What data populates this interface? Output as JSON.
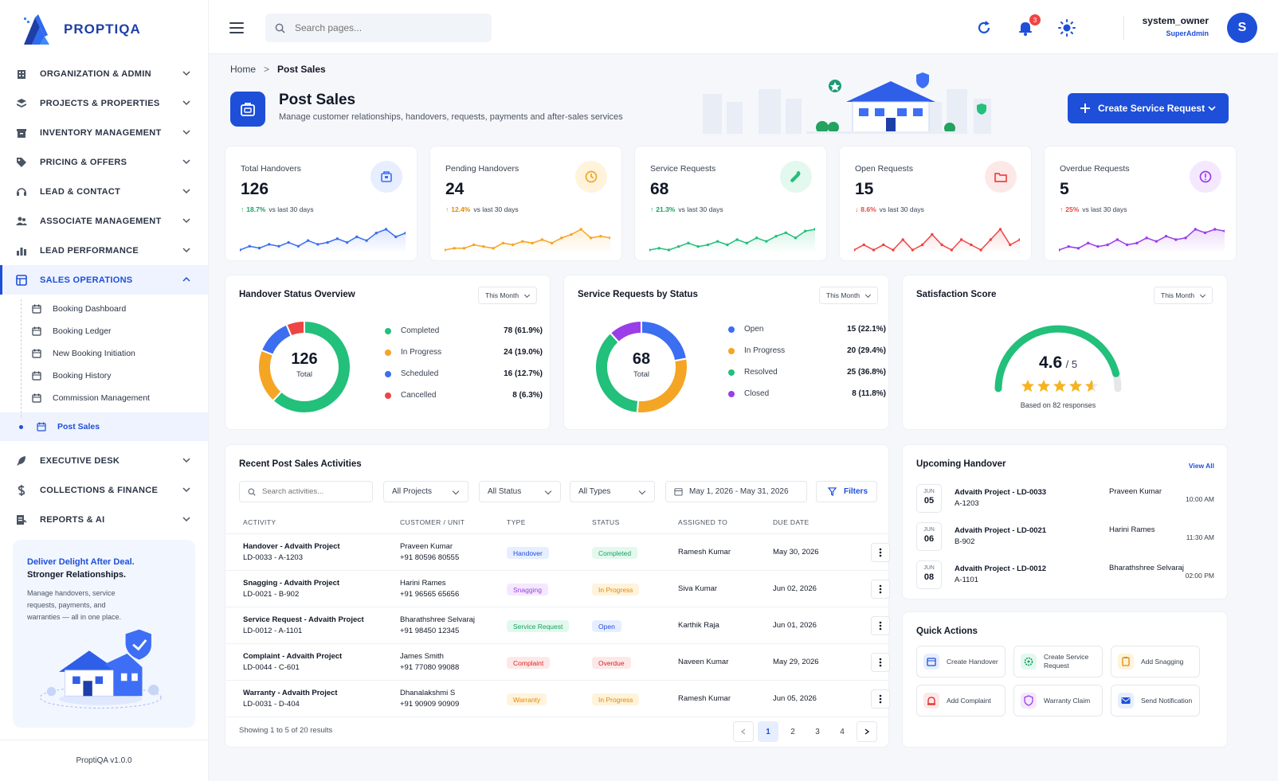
{
  "brand": {
    "name": "PROPTIQA",
    "version": "ProptiQA v1.0.0"
  },
  "colors": {
    "primary": "#1e4fd8",
    "green": "#22c07a",
    "orange": "#f5a524",
    "red": "#ef4444",
    "purple": "#9b3de8",
    "blue": "#3b6ef0"
  },
  "nav": {
    "items": [
      {
        "label": "ORGANIZATION & ADMIN",
        "icon": "building-icon"
      },
      {
        "label": "PROJECTS & PROPERTIES",
        "icon": "layers-icon"
      },
      {
        "label": "INVENTORY MANAGEMENT",
        "icon": "inventory-icon"
      },
      {
        "label": "PRICING & OFFERS",
        "icon": "tag-icon"
      },
      {
        "label": "LEAD & CONTACT",
        "icon": "headset-icon"
      },
      {
        "label": "ASSOCIATE MANAGEMENT",
        "icon": "users-icon"
      },
      {
        "label": "LEAD PERFORMANCE",
        "icon": "bar-chart-icon"
      },
      {
        "label": "SALES OPERATIONS",
        "icon": "grid-icon"
      }
    ],
    "sub": [
      {
        "label": "Booking Dashboard"
      },
      {
        "label": "Booking Ledger"
      },
      {
        "label": "New Booking Initiation"
      },
      {
        "label": "Booking History"
      },
      {
        "label": "Commission Management"
      },
      {
        "label": "Post Sales"
      }
    ],
    "bottom": [
      {
        "label": "EXECUTIVE DESK",
        "icon": "rocket-icon"
      },
      {
        "label": "COLLECTIONS & FINANCE",
        "icon": "dollar-icon"
      },
      {
        "label": "REPORTS & AI",
        "icon": "report-icon"
      }
    ]
  },
  "promo": {
    "line1": "Deliver Delight After Deal.",
    "line2": "Stronger Relationships.",
    "desc": "Manage handovers, service requests, payments, and warranties — all in one place."
  },
  "topbar": {
    "search_placeholder": "Search pages...",
    "notif_count": "3",
    "user_name": "system_owner",
    "user_role": "SuperAdmin",
    "avatar": "S"
  },
  "breadcrumb": {
    "home": "Home",
    "sep": ">",
    "current": "Post Sales"
  },
  "page": {
    "title": "Post Sales",
    "subtitle": "Manage customer relationships, handovers, requests, payments and after-sales services",
    "cta": "Create Service Request"
  },
  "kpis": [
    {
      "label": "Total Handovers",
      "value": "126",
      "change": "18.7%",
      "dir": "up",
      "note": "vs last 30 days",
      "color": "#3b6ef0",
      "spark": [
        3,
        5,
        4,
        6,
        5,
        7,
        5,
        8,
        6,
        7,
        9,
        7,
        10,
        8,
        12,
        14,
        10,
        12
      ]
    },
    {
      "label": "Pending Handovers",
      "value": "24",
      "change": "12.4%",
      "dir": "up",
      "note": "vs last 30 days",
      "color": "#f5a524",
      "spark": [
        2,
        3,
        3,
        5,
        4,
        3,
        6,
        5,
        7,
        6,
        8,
        6,
        9,
        11,
        14,
        9,
        10,
        9
      ]
    },
    {
      "label": "Service Requests",
      "value": "68",
      "change": "21.3%",
      "dir": "up",
      "note": "vs last 30 days",
      "color": "#22c07a",
      "spark": [
        2,
        3,
        2,
        4,
        6,
        4,
        5,
        7,
        5,
        8,
        6,
        9,
        7,
        10,
        12,
        9,
        13,
        14
      ]
    },
    {
      "label": "Open Requests",
      "value": "15",
      "change": "8.6%",
      "dir": "down",
      "note": "vs last 30 days",
      "color": "#ef4444",
      "spark": [
        5,
        6,
        5,
        6,
        5,
        7,
        5,
        6,
        8,
        6,
        5,
        7,
        6,
        5,
        7,
        9,
        6,
        7
      ]
    },
    {
      "label": "Overdue Requests",
      "value": "5",
      "change": "25%",
      "dir": "up",
      "note": "vs last 30 days",
      "color": "#9b3de8",
      "spark": [
        2,
        4,
        3,
        6,
        4,
        5,
        8,
        5,
        6,
        9,
        7,
        10,
        8,
        9,
        14,
        12,
        14,
        13
      ]
    }
  ],
  "handover_status": {
    "title": "Handover Status Overview",
    "filter": "This Month",
    "total": "126",
    "total_label": "Total",
    "segments": [
      {
        "name": "Completed",
        "value": 78,
        "display": "78 (61.9%)",
        "color": "#22c07a"
      },
      {
        "name": "In Progress",
        "value": 24,
        "display": "24 (19.0%)",
        "color": "#f5a524"
      },
      {
        "name": "Scheduled",
        "value": 16,
        "display": "16 (12.7%)",
        "color": "#3b6ef0"
      },
      {
        "name": "Cancelled",
        "value": 8,
        "display": "8 (6.3%)",
        "color": "#ef4444"
      }
    ]
  },
  "service_status": {
    "title": "Service Requests by Status",
    "filter": "This Month",
    "total": "68",
    "total_label": "Total",
    "segments": [
      {
        "name": "Open",
        "value": 15,
        "display": "15 (22.1%)",
        "color": "#3b6ef0"
      },
      {
        "name": "In Progress",
        "value": 20,
        "display": "20 (29.4%)",
        "color": "#f5a524"
      },
      {
        "name": "Resolved",
        "value": 25,
        "display": "25 (36.8%)",
        "color": "#22c07a"
      },
      {
        "name": "Closed",
        "value": 8,
        "display": "8 (11.8%)",
        "color": "#9b3de8"
      }
    ]
  },
  "satisfaction": {
    "title": "Satisfaction Score",
    "filter": "This Month",
    "score": "4.6",
    "max": "/ 5",
    "stars": 4.6,
    "fraction": 0.92,
    "note": "Based on 82 responses"
  },
  "activities": {
    "title": "Recent Post Sales Activities",
    "search_placeholder": "Search activities...",
    "f_projects": "All Projects",
    "f_status": "All Status",
    "f_types": "All Types",
    "f_date": "May 1, 2026 - May 31, 2026",
    "filters_btn": "Filters",
    "columns": [
      "ACTIVITY",
      "CUSTOMER / UNIT",
      "TYPE",
      "STATUS",
      "ASSIGNED TO",
      "DUE DATE"
    ],
    "rows": [
      {
        "title": "Handover - Advaith Project",
        "unit": "LD-0033 - A-1203",
        "customer": "Praveen Kumar",
        "phone": "+91 80596 80555",
        "type": "Handover",
        "type_bg": "#e6eeff",
        "type_fg": "#1e4fd8",
        "status": "Completed",
        "status_bg": "#e3f8ee",
        "status_fg": "#16a35f",
        "assigned": "Ramesh Kumar",
        "due": "May 30, 2026"
      },
      {
        "title": "Snagging - Advaith Project",
        "unit": "LD-0021 - B-902",
        "customer": "Harini Rames",
        "phone": "+91 96565 65656",
        "type": "Snagging",
        "type_bg": "#f4e8ff",
        "type_fg": "#9b3de8",
        "status": "In Progress",
        "status_bg": "#fff3dc",
        "status_fg": "#e08a00",
        "assigned": "Siva Kumar",
        "due": "Jun 02, 2026"
      },
      {
        "title": "Service Request - Advaith Project",
        "unit": "LD-0012 - A-1101",
        "customer": "Bharathshree Selvaraj",
        "phone": "+91 98450 12345",
        "type": "Service Request",
        "type_bg": "#e3f8ee",
        "type_fg": "#16a35f",
        "status": "Open",
        "status_bg": "#e6eeff",
        "status_fg": "#1e4fd8",
        "assigned": "Karthik Raja",
        "due": "Jun 01, 2026"
      },
      {
        "title": "Complaint - Advaith Project",
        "unit": "LD-0044 - C-601",
        "customer": "James Smith",
        "phone": "+91 77080 99088",
        "type": "Complaint",
        "type_bg": "#fde8e8",
        "type_fg": "#dc2626",
        "status": "Overdue",
        "status_bg": "#fde8e8",
        "status_fg": "#dc2626",
        "assigned": "Naveen Kumar",
        "due": "May 29, 2026"
      },
      {
        "title": "Warranty - Advaith Project",
        "unit": "LD-0031 - D-404",
        "customer": "Dhanalakshmi S",
        "phone": "+91 90909 90909",
        "type": "Warranty",
        "type_bg": "#fff3dc",
        "type_fg": "#e08a00",
        "status": "In Progress",
        "status_bg": "#fff3dc",
        "status_fg": "#e08a00",
        "assigned": "Ramesh Kumar",
        "due": "Jun 05, 2026"
      }
    ],
    "showing": "Showing 1 to 5 of 20 results",
    "pages": [
      "1",
      "2",
      "3",
      "4"
    ]
  },
  "upcoming": {
    "title": "Upcoming Handover",
    "view_all": "View All",
    "items": [
      {
        "month": "JUN",
        "day": "05",
        "title": "Advaith Project - LD-0033",
        "unit": "A-1203",
        "person": "Praveen Kumar",
        "time": "10:00 AM"
      },
      {
        "month": "JUN",
        "day": "06",
        "title": "Advaith Project - LD-0021",
        "unit": "B-902",
        "person": "Harini Rames",
        "time": "11:30 AM"
      },
      {
        "month": "JUN",
        "day": "08",
        "title": "Advaith Project - LD-0012",
        "unit": "A-1101",
        "person": "Bharathshree Selvaraj",
        "time": "02:00 PM"
      }
    ]
  },
  "quick_actions": {
    "title": "Quick Actions",
    "items": [
      {
        "label": "Create Handover",
        "icon": "calendar-icon",
        "bg": "#e6eeff",
        "fg": "#1e4fd8"
      },
      {
        "label": "Create Service Request",
        "icon": "gear-icon",
        "bg": "#e3f8ee",
        "fg": "#16a35f"
      },
      {
        "label": "Add Snagging",
        "icon": "clipboard-icon",
        "bg": "#fff3dc",
        "fg": "#e08a00"
      },
      {
        "label": "Add Complaint",
        "icon": "alert-icon",
        "bg": "#fde8e8",
        "fg": "#dc2626"
      },
      {
        "label": "Warranty Claim",
        "icon": "shield-icon",
        "bg": "#f4e8ff",
        "fg": "#9b3de8"
      },
      {
        "label": "Send Notification",
        "icon": "mail-icon",
        "bg": "#e6eeff",
        "fg": "#1e4fd8"
      }
    ]
  }
}
